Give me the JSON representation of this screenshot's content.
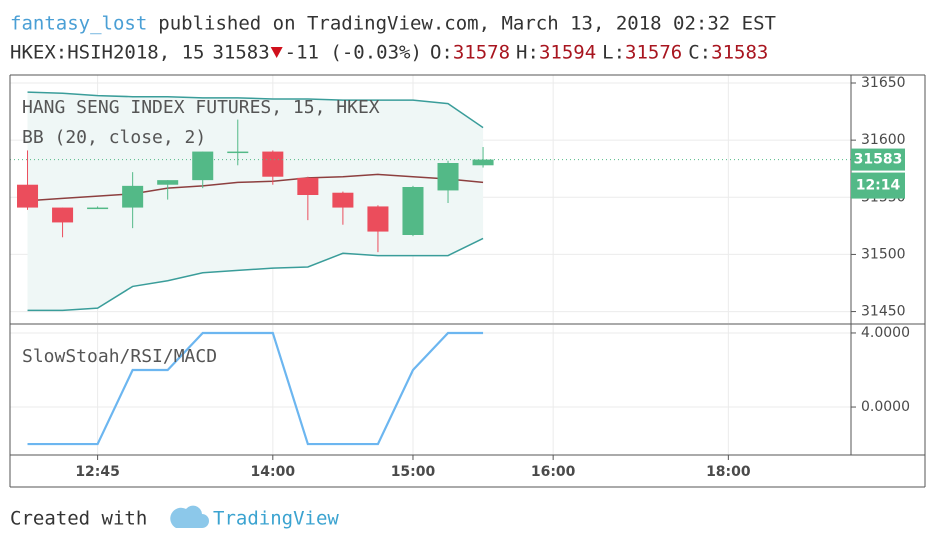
{
  "header": {
    "author": "fantasy_lost",
    "published": "published on TradingView.com, March 13, 2018 02:32 EST",
    "symbol": "HKEX:HSIH2018, 15",
    "change": "-11 (-0.03%)",
    "ohlc_labels": [
      "O:",
      "H:",
      "L:",
      "C:"
    ]
  },
  "footer": {
    "created": "Created with",
    "brand": "TradingView"
  },
  "chart_data": [
    {
      "type": "candlestick",
      "title": "HANG SENG INDEX FUTURES, 15, HKEX",
      "x": [
        0,
        1,
        2,
        3,
        4,
        5,
        6,
        7,
        8,
        9,
        10,
        11,
        12,
        13
      ],
      "open": [
        31561,
        31541,
        31541,
        31541,
        31561,
        31565,
        31589,
        31590,
        31567,
        31554,
        31542,
        31517,
        31556,
        31578
      ],
      "high": [
        31591,
        31541,
        31542,
        31572,
        31565,
        31590,
        31618,
        31591,
        31568,
        31555,
        31543,
        31560,
        31582,
        31594
      ],
      "low": [
        31539,
        31515,
        31540,
        31523,
        31548,
        31558,
        31578,
        31561,
        31530,
        31526,
        31502,
        31516,
        31545,
        31576
      ],
      "close": [
        31541,
        31528,
        31541,
        31560,
        31565,
        31590,
        31590,
        31568,
        31552,
        31541,
        31520,
        31559,
        31580,
        31583
      ],
      "up_color": "#53b987",
      "down_color": "#eb4d5c",
      "overlays": [
        {
          "type": "bollinger",
          "name": "BB (20, close, 2)",
          "band_color": "#3a9d9a",
          "basis_color": "#8d3f3f",
          "fill": "#eff7f6",
          "upper": [
            31642,
            31641,
            31639,
            31638,
            31638,
            31637,
            31637,
            31636,
            31636,
            31635,
            31635,
            31635,
            31632,
            31611
          ],
          "basis": [
            31547,
            31549,
            31551,
            31553,
            31558,
            31560,
            31563,
            31564,
            31567,
            31568,
            31570,
            31568,
            31566,
            31563
          ],
          "lower": [
            31451,
            31451,
            31453,
            31472,
            31477,
            31484,
            31486,
            31488,
            31489,
            31501,
            31499,
            31499,
            31499,
            31514
          ]
        }
      ],
      "xlim": [
        -0.5,
        23.5
      ],
      "ylim": [
        31440,
        31657
      ],
      "yticks": [
        31450,
        31500,
        31550,
        31600,
        31650
      ],
      "countdown": "12:14",
      "grid": true
    },
    {
      "type": "line",
      "series": [
        {
          "name": "SlowStoah/RSI/MACD",
          "color": "#6cb6f0",
          "values": [
            -2,
            -2,
            -2,
            2,
            2,
            4,
            4,
            4,
            -2,
            -2,
            -2,
            2,
            4,
            4
          ]
        }
      ],
      "x": [
        0,
        1,
        2,
        3,
        4,
        5,
        6,
        7,
        8,
        9,
        10,
        11,
        12,
        13
      ],
      "xlim": [
        -0.5,
        23.5
      ],
      "ylim": [
        -2.59,
        4.43
      ],
      "yticks": [
        {
          "value": 4,
          "label": "4.0000"
        },
        {
          "value": 0,
          "label": "0.0000"
        }
      ],
      "xticks": [
        {
          "value": 2,
          "label": "12:45"
        },
        {
          "value": 7,
          "label": "14:00"
        },
        {
          "value": 11,
          "label": "15:00"
        },
        {
          "value": 15,
          "label": "16:00"
        },
        {
          "value": 20,
          "label": "18:00"
        }
      ],
      "grid": true
    }
  ]
}
